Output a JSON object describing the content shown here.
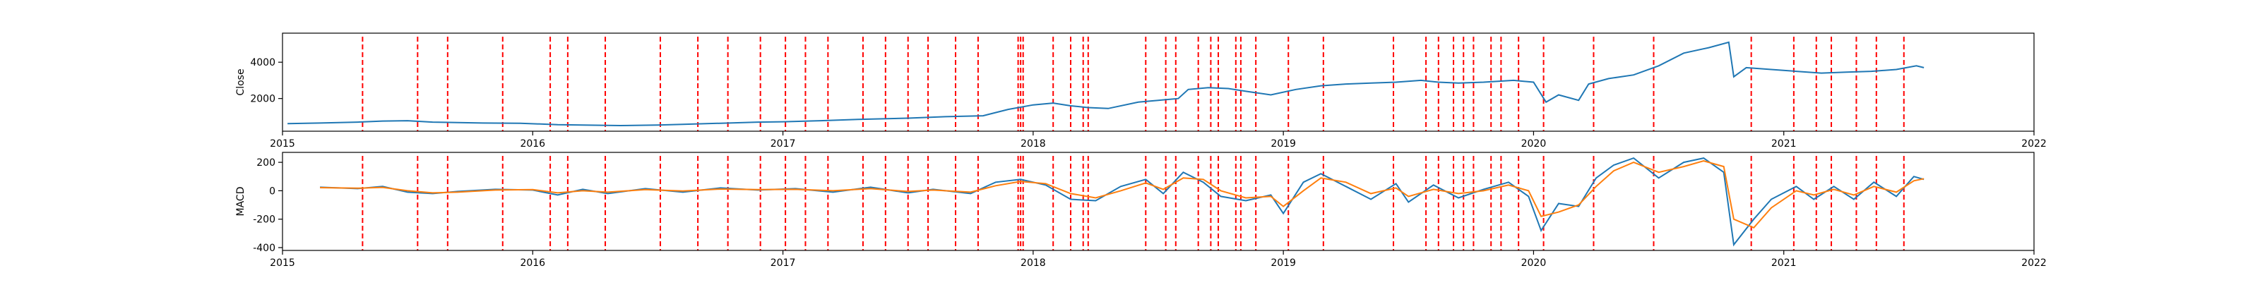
{
  "chart_data": [
    {
      "type": "line",
      "ylabel": "Close",
      "xlabel": "",
      "title": "",
      "grid": false,
      "x_ticks": [
        "2015",
        "2016",
        "2017",
        "2018",
        "2019",
        "2020",
        "2021",
        "2022"
      ],
      "xlim": [
        2015.0,
        2022.0
      ],
      "y_ticks": [
        2000,
        4000
      ],
      "ylim": [
        200,
        5600
      ],
      "series": [
        {
          "color": "#1f77b4",
          "points": [
            [
              2015.02,
              620
            ],
            [
              2015.15,
              650
            ],
            [
              2015.3,
              700
            ],
            [
              2015.4,
              760
            ],
            [
              2015.5,
              780
            ],
            [
              2015.6,
              700
            ],
            [
              2015.8,
              650
            ],
            [
              2015.95,
              640
            ],
            [
              2016.1,
              560
            ],
            [
              2016.2,
              540
            ],
            [
              2016.35,
              510
            ],
            [
              2016.5,
              540
            ],
            [
              2016.6,
              580
            ],
            [
              2016.75,
              640
            ],
            [
              2016.9,
              700
            ],
            [
              2017.0,
              720
            ],
            [
              2017.15,
              780
            ],
            [
              2017.3,
              850
            ],
            [
              2017.5,
              920
            ],
            [
              2017.65,
              1000
            ],
            [
              2017.8,
              1050
            ],
            [
              2017.9,
              1400
            ],
            [
              2018.0,
              1650
            ],
            [
              2018.08,
              1750
            ],
            [
              2018.15,
              1600
            ],
            [
              2018.22,
              1500
            ],
            [
              2018.3,
              1450
            ],
            [
              2018.42,
              1800
            ],
            [
              2018.5,
              1900
            ],
            [
              2018.58,
              2000
            ],
            [
              2018.62,
              2500
            ],
            [
              2018.7,
              2600
            ],
            [
              2018.78,
              2550
            ],
            [
              2018.85,
              2400
            ],
            [
              2018.95,
              2200
            ],
            [
              2019.05,
              2500
            ],
            [
              2019.15,
              2700
            ],
            [
              2019.25,
              2800
            ],
            [
              2019.35,
              2850
            ],
            [
              2019.45,
              2900
            ],
            [
              2019.55,
              3000
            ],
            [
              2019.62,
              2900
            ],
            [
              2019.7,
              2850
            ],
            [
              2019.8,
              2900
            ],
            [
              2019.92,
              3000
            ],
            [
              2020.0,
              2900
            ],
            [
              2020.05,
              1800
            ],
            [
              2020.1,
              2200
            ],
            [
              2020.18,
              1900
            ],
            [
              2020.22,
              2800
            ],
            [
              2020.3,
              3100
            ],
            [
              2020.4,
              3300
            ],
            [
              2020.5,
              3800
            ],
            [
              2020.6,
              4500
            ],
            [
              2020.7,
              4800
            ],
            [
              2020.78,
              5100
            ],
            [
              2020.8,
              3200
            ],
            [
              2020.85,
              3700
            ],
            [
              2020.95,
              3600
            ],
            [
              2021.05,
              3500
            ],
            [
              2021.15,
              3400
            ],
            [
              2021.25,
              3450
            ],
            [
              2021.35,
              3500
            ],
            [
              2021.45,
              3600
            ],
            [
              2021.53,
              3800
            ],
            [
              2021.56,
              3700
            ]
          ]
        }
      ],
      "vlines_color": "#ff0000"
    },
    {
      "type": "line",
      "ylabel": "MACD",
      "xlabel": "",
      "title": "",
      "grid": false,
      "x_ticks": [
        "2015",
        "2016",
        "2017",
        "2018",
        "2019",
        "2020",
        "2021",
        "2022"
      ],
      "xlim": [
        2015.0,
        2022.0
      ],
      "y_ticks": [
        -400,
        -200,
        0,
        200
      ],
      "ylim": [
        -420,
        270
      ],
      "series": [
        {
          "color": "#1f77b4",
          "points": [
            [
              2015.15,
              25
            ],
            [
              2015.3,
              15
            ],
            [
              2015.4,
              30
            ],
            [
              2015.5,
              -10
            ],
            [
              2015.6,
              -20
            ],
            [
              2015.7,
              -5
            ],
            [
              2015.85,
              10
            ],
            [
              2016.0,
              5
            ],
            [
              2016.1,
              -30
            ],
            [
              2016.2,
              10
            ],
            [
              2016.3,
              -20
            ],
            [
              2016.45,
              15
            ],
            [
              2016.6,
              -10
            ],
            [
              2016.75,
              20
            ],
            [
              2016.9,
              5
            ],
            [
              2017.05,
              15
            ],
            [
              2017.2,
              -10
            ],
            [
              2017.35,
              25
            ],
            [
              2017.5,
              -15
            ],
            [
              2017.6,
              10
            ],
            [
              2017.75,
              -20
            ],
            [
              2017.85,
              60
            ],
            [
              2017.95,
              80
            ],
            [
              2018.05,
              40
            ],
            [
              2018.15,
              -60
            ],
            [
              2018.25,
              -70
            ],
            [
              2018.35,
              30
            ],
            [
              2018.45,
              80
            ],
            [
              2018.52,
              -20
            ],
            [
              2018.6,
              130
            ],
            [
              2018.68,
              60
            ],
            [
              2018.75,
              -40
            ],
            [
              2018.85,
              -70
            ],
            [
              2018.95,
              -30
            ],
            [
              2019.0,
              -160
            ],
            [
              2019.08,
              60
            ],
            [
              2019.15,
              120
            ],
            [
              2019.25,
              30
            ],
            [
              2019.35,
              -60
            ],
            [
              2019.45,
              50
            ],
            [
              2019.5,
              -80
            ],
            [
              2019.6,
              40
            ],
            [
              2019.7,
              -50
            ],
            [
              2019.8,
              10
            ],
            [
              2019.9,
              60
            ],
            [
              2019.98,
              -40
            ],
            [
              2020.03,
              -280
            ],
            [
              2020.1,
              -90
            ],
            [
              2020.18,
              -110
            ],
            [
              2020.25,
              90
            ],
            [
              2020.32,
              180
            ],
            [
              2020.4,
              230
            ],
            [
              2020.5,
              90
            ],
            [
              2020.6,
              200
            ],
            [
              2020.68,
              230
            ],
            [
              2020.76,
              130
            ],
            [
              2020.8,
              -380
            ],
            [
              2020.88,
              -200
            ],
            [
              2020.95,
              -60
            ],
            [
              2021.05,
              30
            ],
            [
              2021.12,
              -60
            ],
            [
              2021.2,
              30
            ],
            [
              2021.28,
              -60
            ],
            [
              2021.36,
              60
            ],
            [
              2021.45,
              -40
            ],
            [
              2021.52,
              100
            ],
            [
              2021.56,
              80
            ]
          ]
        },
        {
          "color": "#ff7f0e",
          "points": [
            [
              2015.15,
              22
            ],
            [
              2015.3,
              18
            ],
            [
              2015.4,
              24
            ],
            [
              2015.5,
              0
            ],
            [
              2015.6,
              -15
            ],
            [
              2015.7,
              -10
            ],
            [
              2015.85,
              5
            ],
            [
              2016.0,
              8
            ],
            [
              2016.1,
              -15
            ],
            [
              2016.2,
              0
            ],
            [
              2016.3,
              -10
            ],
            [
              2016.45,
              8
            ],
            [
              2016.6,
              -2
            ],
            [
              2016.75,
              12
            ],
            [
              2016.9,
              8
            ],
            [
              2017.05,
              10
            ],
            [
              2017.2,
              0
            ],
            [
              2017.35,
              15
            ],
            [
              2017.5,
              -5
            ],
            [
              2017.6,
              5
            ],
            [
              2017.75,
              -10
            ],
            [
              2017.85,
              35
            ],
            [
              2017.95,
              65
            ],
            [
              2018.05,
              50
            ],
            [
              2018.15,
              -20
            ],
            [
              2018.25,
              -50
            ],
            [
              2018.35,
              0
            ],
            [
              2018.45,
              55
            ],
            [
              2018.52,
              10
            ],
            [
              2018.6,
              90
            ],
            [
              2018.68,
              80
            ],
            [
              2018.75,
              0
            ],
            [
              2018.85,
              -50
            ],
            [
              2018.95,
              -40
            ],
            [
              2019.0,
              -110
            ],
            [
              2019.08,
              0
            ],
            [
              2019.15,
              90
            ],
            [
              2019.25,
              60
            ],
            [
              2019.35,
              -20
            ],
            [
              2019.45,
              20
            ],
            [
              2019.5,
              -40
            ],
            [
              2019.6,
              10
            ],
            [
              2019.7,
              -20
            ],
            [
              2019.8,
              0
            ],
            [
              2019.9,
              40
            ],
            [
              2019.98,
              0
            ],
            [
              2020.03,
              -180
            ],
            [
              2020.1,
              -150
            ],
            [
              2020.18,
              -100
            ],
            [
              2020.25,
              30
            ],
            [
              2020.32,
              140
            ],
            [
              2020.4,
              200
            ],
            [
              2020.5,
              130
            ],
            [
              2020.6,
              170
            ],
            [
              2020.68,
              210
            ],
            [
              2020.76,
              170
            ],
            [
              2020.8,
              -200
            ],
            [
              2020.88,
              -260
            ],
            [
              2020.95,
              -120
            ],
            [
              2021.05,
              0
            ],
            [
              2021.12,
              -30
            ],
            [
              2021.2,
              10
            ],
            [
              2021.28,
              -30
            ],
            [
              2021.36,
              30
            ],
            [
              2021.45,
              -10
            ],
            [
              2021.52,
              70
            ],
            [
              2021.56,
              85
            ]
          ]
        }
      ],
      "vlines_color": "#ff0000"
    }
  ],
  "vlines_x": [
    2015.32,
    2015.54,
    2015.66,
    2015.88,
    2016.07,
    2016.14,
    2016.29,
    2016.51,
    2016.66,
    2016.78,
    2016.91,
    2017.01,
    2017.09,
    2017.18,
    2017.32,
    2017.41,
    2017.5,
    2017.58,
    2017.69,
    2017.78,
    2017.94,
    2017.95,
    2017.96,
    2018.08,
    2018.15,
    2018.2,
    2018.22,
    2018.45,
    2018.53,
    2018.57,
    2018.66,
    2018.71,
    2018.74,
    2018.81,
    2018.83,
    2018.89,
    2019.02,
    2019.16,
    2019.44,
    2019.57,
    2019.62,
    2019.68,
    2019.72,
    2019.76,
    2019.83,
    2019.87,
    2019.94,
    2020.04,
    2020.24,
    2020.48,
    2020.87,
    2021.04,
    2021.13,
    2021.19,
    2021.29,
    2021.37,
    2021.48
  ]
}
